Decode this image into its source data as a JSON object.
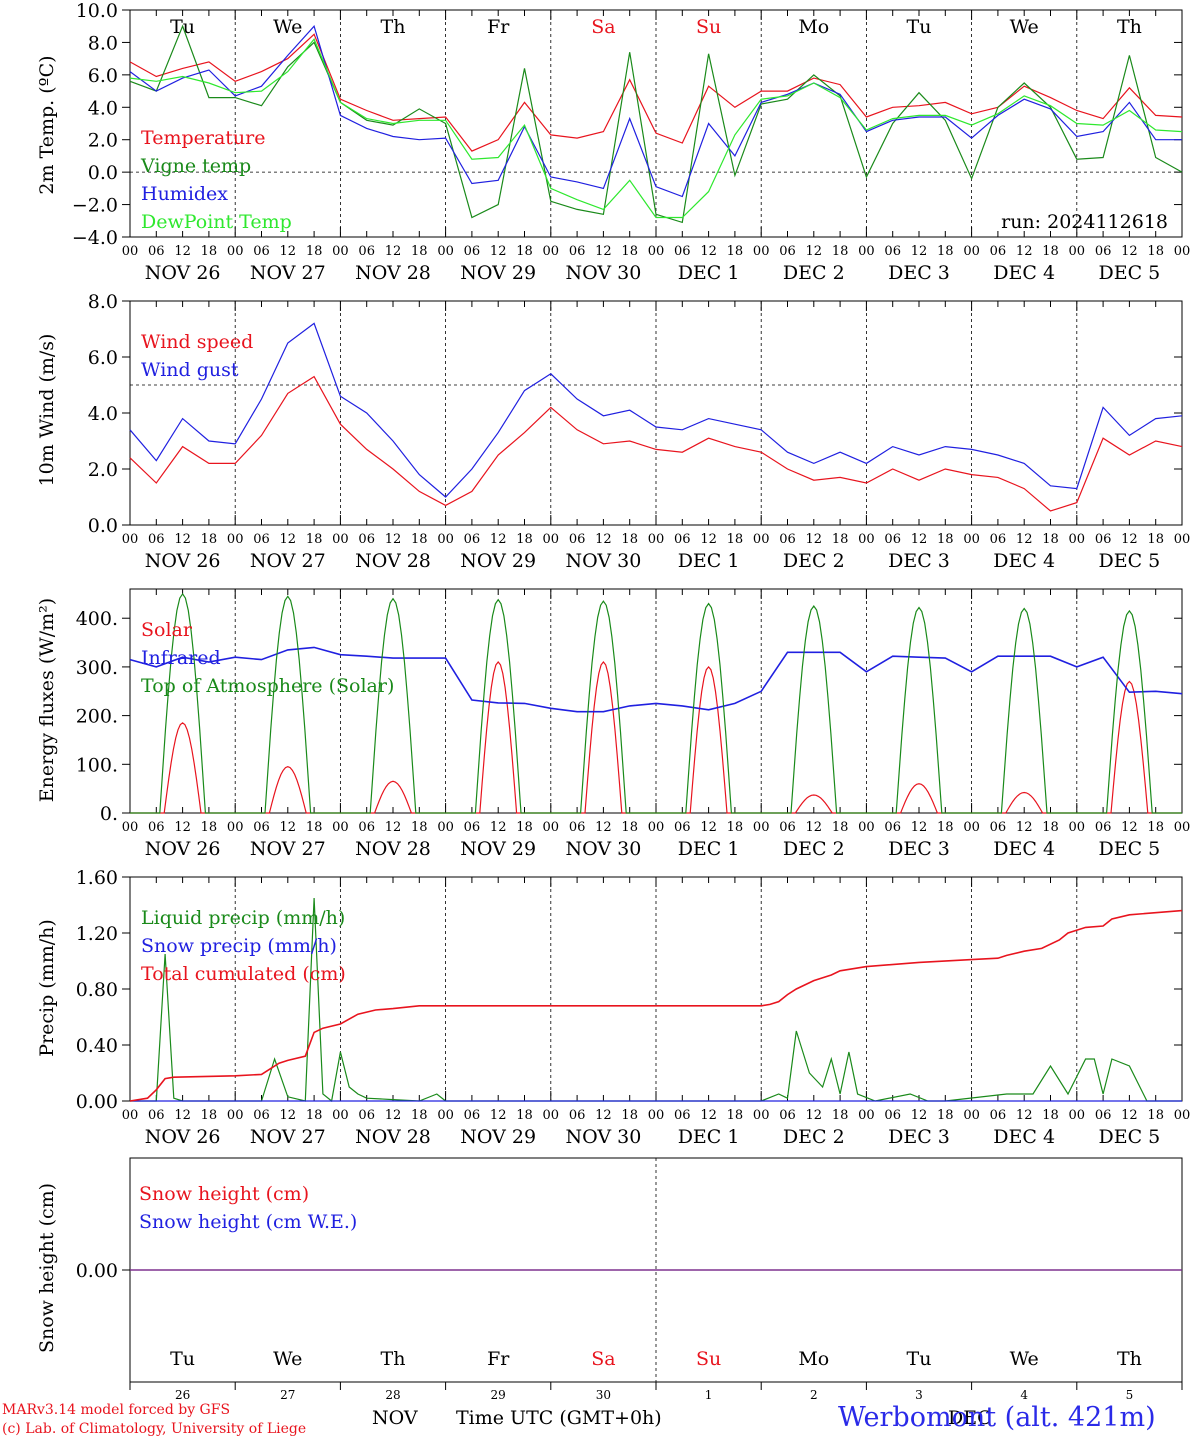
{
  "run_label": "run: 2024112618",
  "footer": {
    "credit1": "MARv3.14 model forced by GFS",
    "credit2": "(c) Lab. of Climatology, University of Liege",
    "xlabel": "Time UTC (GMT+0h)",
    "month_nov": "NOV",
    "month_dec": "DEC",
    "station": "Werbomont (alt. 421m)"
  },
  "days": {
    "weekdays": [
      "Tu",
      "We",
      "Th",
      "Fr",
      "Sa",
      "Su",
      "Mo",
      "Tu",
      "We",
      "Th"
    ],
    "weekday_colors": [
      "#000000",
      "#000000",
      "#000000",
      "#000000",
      "#e8141e",
      "#e8141e",
      "#000000",
      "#000000",
      "#000000",
      "#000000"
    ],
    "date_labels": [
      "NOV 26",
      "NOV 27",
      "NOV 28",
      "NOV 29",
      "NOV 30",
      "DEC 1",
      "DEC 2",
      "DEC 3",
      "DEC 4",
      "DEC 5"
    ],
    "day_numbers": [
      "26",
      "27",
      "28",
      "29",
      "30",
      "1",
      "2",
      "3",
      "4",
      "5"
    ],
    "hour_ticks": [
      "00",
      "06",
      "12",
      "18"
    ],
    "last_tick": "00"
  },
  "colors": {
    "red": "#e8141e",
    "green": "#1a8a1a",
    "blue": "#2020e0",
    "lightgreen": "#2ee82e",
    "purple": "#7a2a8a"
  },
  "chart_data": [
    {
      "type": "line",
      "ylabel": "2m Temp. (ºC)",
      "ylim": [
        -4,
        10
      ],
      "yticks": [
        "10.0",
        "8.0",
        "6.0",
        "4.0",
        "2.0",
        "0.0",
        "−2.0",
        "−4.0"
      ],
      "ref_line": 0,
      "x_hours": [
        0,
        6,
        12,
        18,
        24,
        30,
        36,
        42,
        48,
        54,
        60,
        66,
        72,
        78,
        84,
        90,
        96,
        102,
        108,
        114,
        120,
        126,
        132,
        138,
        144,
        150,
        156,
        162,
        168,
        174,
        180,
        186,
        192,
        198,
        204,
        210,
        216,
        222,
        228,
        234,
        240
      ],
      "series": [
        {
          "name": "Temperature",
          "color": "red",
          "values": [
            6.8,
            5.9,
            6.4,
            6.8,
            5.6,
            6.2,
            7.0,
            8.5,
            4.5,
            3.8,
            3.2,
            3.3,
            3.4,
            1.3,
            2.0,
            4.3,
            2.3,
            2.1,
            2.5,
            5.7,
            2.4,
            1.8,
            5.3,
            4.0,
            5.0,
            5.0,
            5.8,
            5.4,
            3.4,
            4.0,
            4.1,
            4.3,
            3.6,
            4.0,
            5.3,
            4.6,
            3.8,
            3.3,
            5.2,
            3.5,
            3.4
          ]
        },
        {
          "name": "Vigne temp",
          "color": "green",
          "values": [
            5.6,
            5.0,
            9.0,
            4.6,
            4.6,
            4.1,
            6.5,
            8.0,
            4.3,
            3.2,
            2.9,
            3.9,
            3.0,
            -2.8,
            -2.0,
            6.4,
            -1.8,
            -2.3,
            -2.6,
            7.4,
            -2.6,
            -3.1,
            7.3,
            -0.2,
            4.2,
            4.5,
            6.0,
            4.7,
            -0.3,
            3.0,
            4.9,
            3.2,
            -0.4,
            4.0,
            5.5,
            4.0,
            0.8,
            0.9,
            7.2,
            0.9,
            0.0
          ]
        },
        {
          "name": "Humidex",
          "color": "blue",
          "values": [
            6.2,
            5.0,
            5.8,
            6.3,
            4.7,
            5.3,
            7.2,
            9.0,
            3.5,
            2.7,
            2.2,
            2.0,
            2.1,
            -0.7,
            -0.5,
            2.8,
            -0.3,
            -0.6,
            -1.0,
            3.3,
            -0.9,
            -1.5,
            3.0,
            1.0,
            4.3,
            4.8,
            5.5,
            4.8,
            2.5,
            3.2,
            3.4,
            3.4,
            2.1,
            3.5,
            4.5,
            3.9,
            2.2,
            2.5,
            4.3,
            2.0,
            2.0
          ]
        },
        {
          "name": "DewPoint Temp",
          "color": "lightgreen",
          "values": [
            5.8,
            5.6,
            5.9,
            5.5,
            4.9,
            5.0,
            6.2,
            8.2,
            4.3,
            3.3,
            3.0,
            3.2,
            3.2,
            0.8,
            0.9,
            2.9,
            -1.0,
            -1.7,
            -2.3,
            -0.5,
            -2.8,
            -2.8,
            -1.2,
            2.3,
            4.5,
            4.7,
            5.5,
            4.6,
            2.6,
            3.3,
            3.5,
            3.5,
            2.9,
            3.6,
            4.7,
            4.1,
            3.0,
            2.9,
            3.8,
            2.6,
            2.5
          ]
        }
      ]
    },
    {
      "type": "line",
      "ylabel": "10m Wind (m/s)",
      "ylim": [
        0,
        8
      ],
      "yticks": [
        "8.0",
        "6.0",
        "4.0",
        "2.0",
        "0.0"
      ],
      "ref_line": 5,
      "x_hours": [
        0,
        6,
        12,
        18,
        24,
        30,
        36,
        42,
        48,
        54,
        60,
        66,
        72,
        78,
        84,
        90,
        96,
        102,
        108,
        114,
        120,
        126,
        132,
        138,
        144,
        150,
        156,
        162,
        168,
        174,
        180,
        186,
        192,
        198,
        204,
        210,
        216,
        222,
        228,
        234,
        240
      ],
      "series": [
        {
          "name": "Wind speed",
          "color": "red",
          "values": [
            2.4,
            1.5,
            2.8,
            2.2,
            2.2,
            3.2,
            4.7,
            5.3,
            3.6,
            2.7,
            2.0,
            1.2,
            0.7,
            1.2,
            2.5,
            3.3,
            4.2,
            3.4,
            2.9,
            3.0,
            2.7,
            2.6,
            3.1,
            2.8,
            2.6,
            2.0,
            1.6,
            1.7,
            1.5,
            2.0,
            1.6,
            2.0,
            1.8,
            1.7,
            1.3,
            0.5,
            0.8,
            3.1,
            2.5,
            3.0,
            2.8
          ]
        },
        {
          "name": "Wind gust",
          "color": "blue",
          "values": [
            3.4,
            2.3,
            3.8,
            3.0,
            2.9,
            4.5,
            6.5,
            7.2,
            4.6,
            4.0,
            3.0,
            1.8,
            1.0,
            2.0,
            3.3,
            4.8,
            5.4,
            4.5,
            3.9,
            4.1,
            3.5,
            3.4,
            3.8,
            3.6,
            3.4,
            2.6,
            2.2,
            2.6,
            2.2,
            2.8,
            2.5,
            2.8,
            2.7,
            2.5,
            2.2,
            1.4,
            1.3,
            4.2,
            3.2,
            3.8,
            3.9
          ]
        }
      ]
    },
    {
      "type": "line",
      "ylabel": "Energy fluxes (W/m²)",
      "ylim": [
        0,
        460
      ],
      "yticks": [
        "400.",
        "300.",
        "200.",
        "100.",
        "0."
      ],
      "series": [
        {
          "name": "Solar",
          "color": "red",
          "peaks": [
            185,
            95,
            65,
            310,
            310,
            300,
            37,
            60,
            42,
            270
          ]
        },
        {
          "name": "Infrared",
          "color": "blue",
          "x_hours": [
            0,
            6,
            12,
            18,
            24,
            30,
            36,
            42,
            48,
            54,
            60,
            66,
            72,
            78,
            84,
            90,
            96,
            102,
            108,
            114,
            120,
            126,
            132,
            138,
            144,
            150,
            156,
            162,
            168,
            174,
            180,
            186,
            192,
            198,
            204,
            210,
            216,
            222,
            228,
            234,
            240
          ],
          "values": [
            315,
            300,
            320,
            310,
            320,
            315,
            335,
            340,
            325,
            322,
            318,
            318,
            318,
            232,
            226,
            225,
            215,
            208,
            208,
            220,
            225,
            220,
            212,
            225,
            250,
            330,
            330,
            330,
            290,
            322,
            320,
            318,
            290,
            322,
            322,
            322,
            300,
            320,
            248,
            250,
            245
          ]
        },
        {
          "name": "Top of Atmosphere (Solar)",
          "color": "green",
          "peaks": [
            450,
            445,
            440,
            438,
            435,
            430,
            425,
            422,
            420,
            415
          ]
        }
      ]
    },
    {
      "type": "line",
      "ylabel": "Precip (mm/h)",
      "ylim": [
        0,
        1.6
      ],
      "yticks": [
        "1.60",
        "1.20",
        "0.80",
        "0.40",
        "0.00"
      ],
      "series": [
        {
          "name": "Liquid precip (mm/h)",
          "color": "green",
          "x_hours": [
            0,
            4,
            6,
            8,
            10,
            12,
            30,
            33,
            36,
            40,
            42,
            44,
            46,
            48,
            50,
            52,
            54,
            60,
            66,
            70,
            72,
            120,
            144,
            148,
            150,
            152,
            155,
            158,
            160,
            162,
            164,
            166,
            170,
            178,
            182,
            186,
            200,
            206,
            210,
            214,
            218,
            220,
            222,
            224,
            228,
            232,
            240
          ],
          "values": [
            0,
            0,
            0,
            1.05,
            0.02,
            0,
            0,
            0.3,
            0.03,
            0,
            1.45,
            0.05,
            0,
            0.35,
            0.1,
            0.05,
            0.02,
            0.01,
            0,
            0.05,
            0,
            0,
            0,
            0.05,
            0.02,
            0.5,
            0.2,
            0.1,
            0.3,
            0.05,
            0.35,
            0.05,
            0,
            0.05,
            0,
            0,
            0.05,
            0.05,
            0.25,
            0.05,
            0.3,
            0.3,
            0.05,
            0.3,
            0.25,
            0,
            0
          ]
        },
        {
          "name": "Snow precip (mm/h)",
          "color": "blue",
          "x_hours": [
            0,
            240
          ],
          "values": [
            0,
            0
          ]
        },
        {
          "name": "Total cumulated (cm)",
          "color": "red",
          "x_hours": [
            0,
            4,
            6,
            8,
            10,
            24,
            30,
            34,
            36,
            40,
            42,
            44,
            48,
            52,
            56,
            60,
            66,
            72,
            96,
            120,
            144,
            146,
            148,
            150,
            152,
            156,
            160,
            162,
            168,
            180,
            192,
            198,
            200,
            204,
            208,
            212,
            214,
            218,
            222,
            224,
            228,
            240
          ],
          "values": [
            0,
            0.02,
            0.08,
            0.16,
            0.17,
            0.18,
            0.19,
            0.27,
            0.29,
            0.32,
            0.49,
            0.52,
            0.55,
            0.62,
            0.65,
            0.66,
            0.68,
            0.68,
            0.68,
            0.68,
            0.68,
            0.69,
            0.71,
            0.76,
            0.8,
            0.86,
            0.9,
            0.93,
            0.96,
            0.99,
            1.01,
            1.02,
            1.04,
            1.07,
            1.09,
            1.15,
            1.2,
            1.24,
            1.25,
            1.3,
            1.33,
            1.36
          ]
        }
      ]
    },
    {
      "type": "line",
      "ylabel": "Snow height (cm)",
      "yticks": [
        "0.00"
      ],
      "series": [
        {
          "name": "Snow height (cm)",
          "color": "red",
          "x_hours": [
            0,
            240
          ],
          "values": [
            0,
            0
          ]
        },
        {
          "name": "Snow height (cm W.E.)",
          "color": "blue",
          "x_hours": [
            0,
            240
          ],
          "values": [
            0,
            0
          ]
        }
      ]
    }
  ]
}
